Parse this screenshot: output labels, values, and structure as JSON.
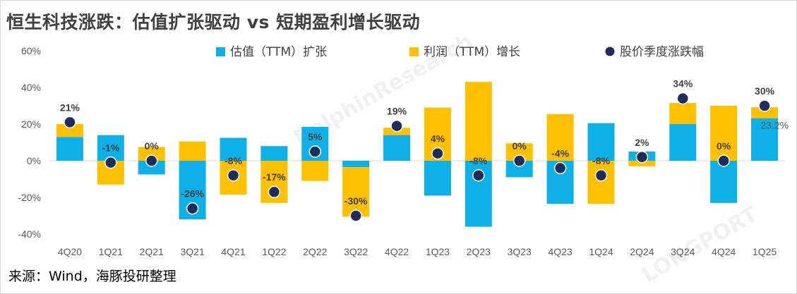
{
  "title": "恒生科技涨跌：估值扩张驱动 vs 短期盈利增长驱动",
  "source": "来源：Wind，海豚投研整理",
  "watermarks": [
    "DolphinResearch",
    "LONGPORT"
  ],
  "colors": {
    "valuation": "#0eb0e8",
    "profit": "#ffc000",
    "dot": "#1f2d5c",
    "axis": "#d9d9d9",
    "text": "#595959"
  },
  "chart_data": {
    "type": "bar",
    "stacked": true,
    "categories": [
      "4Q20",
      "1Q21",
      "2Q21",
      "3Q21",
      "4Q21",
      "1Q22",
      "2Q22",
      "3Q22",
      "4Q22",
      "1Q23",
      "2Q23",
      "3Q23",
      "4Q23",
      "1Q24",
      "2Q24",
      "3Q24",
      "4Q24",
      "1Q25"
    ],
    "ylim": [
      -40,
      60
    ],
    "yticks": [
      -40,
      -20,
      0,
      20,
      40,
      60
    ],
    "ytick_labels": [
      "-40%",
      "-20%",
      "0%",
      "20%",
      "40%",
      "60%"
    ],
    "series": [
      {
        "name": "估值（TTM）扩张",
        "type": "bar",
        "values": [
          13,
          14,
          -7.5,
          -32,
          12.5,
          8,
          18.5,
          -3.5,
          14,
          -19,
          -36,
          -9,
          -23.5,
          20.5,
          5,
          20,
          -23,
          23.2
        ]
      },
      {
        "name": "利润（TTM）增长",
        "type": "bar",
        "values": [
          7,
          -13,
          7.5,
          10.5,
          -18.5,
          -23,
          -11,
          -27,
          4,
          29,
          43,
          9.5,
          25.5,
          -23.5,
          -3,
          11.5,
          30,
          6
        ]
      },
      {
        "name": "股价季度涨跌幅",
        "type": "scatter",
        "values": [
          21,
          -1,
          0,
          -26,
          -8,
          -17,
          5,
          -30,
          19,
          4,
          -8,
          0,
          -4,
          -8,
          2,
          34,
          0,
          30
        ]
      }
    ],
    "data_labels": [
      "21%",
      "-1%",
      "0%",
      "-26%",
      "-8%",
      "-17%",
      "5%",
      "-30%",
      "19%",
      "4%",
      "-8%",
      "0%",
      "-4%",
      "-8%",
      "2%",
      "34%",
      "0%",
      "30%"
    ],
    "extra_label": "23.2%",
    "legend_position": "top"
  }
}
